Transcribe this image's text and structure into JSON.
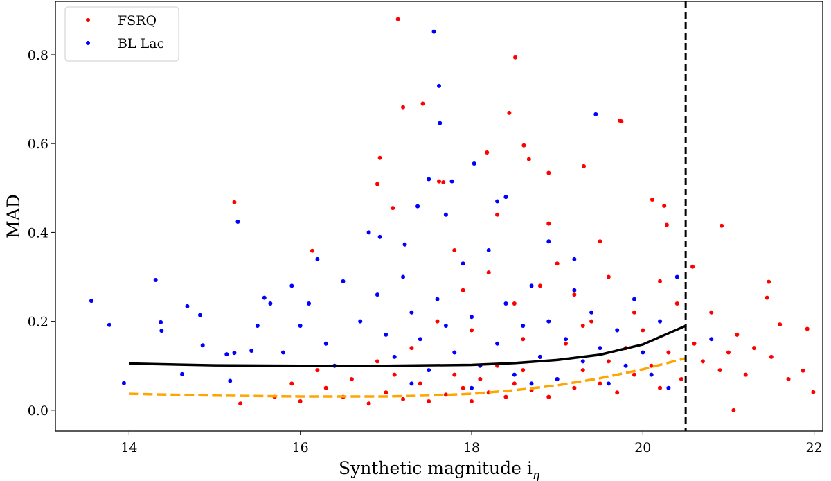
{
  "chart_data": {
    "type": "scatter",
    "xlabel": "Synthetic magnitude i",
    "xlabel_subscript": "η",
    "ylabel": "MAD",
    "xlim": [
      13.14,
      22.1
    ],
    "ylim": [
      -0.047,
      0.92
    ],
    "xticks": [
      14,
      16,
      18,
      20,
      22
    ],
    "xtick_labels": [
      "14",
      "16",
      "18",
      "20",
      "22"
    ],
    "yticks": [
      0.0,
      0.2,
      0.4,
      0.6,
      0.8
    ],
    "ytick_labels": [
      "0.0",
      "0.2",
      "0.4",
      "0.6",
      "0.8"
    ],
    "grid": false,
    "legend_position": "top-left",
    "series": [
      {
        "name": "FSRQ",
        "color": "#ff0000",
        "points": [
          [
            17.14,
            0.88
          ],
          [
            18.51,
            0.794
          ],
          [
            17.2,
            0.682
          ],
          [
            17.43,
            0.69
          ],
          [
            18.44,
            0.669
          ],
          [
            19.73,
            0.652
          ],
          [
            19.75,
            0.65
          ],
          [
            16.93,
            0.568
          ],
          [
            16.9,
            0.509
          ],
          [
            18.61,
            0.596
          ],
          [
            18.18,
            0.58
          ],
          [
            18.67,
            0.565
          ],
          [
            19.31,
            0.549
          ],
          [
            18.9,
            0.534
          ],
          [
            20.11,
            0.474
          ],
          [
            20.25,
            0.46
          ],
          [
            20.28,
            0.417
          ],
          [
            20.92,
            0.415
          ],
          [
            17.08,
            0.455
          ],
          [
            17.62,
            0.515
          ],
          [
            17.67,
            0.513
          ],
          [
            15.23,
            0.468
          ],
          [
            16.14,
            0.359
          ],
          [
            21.47,
            0.289
          ],
          [
            20.58,
            0.323
          ],
          [
            21.92,
            0.183
          ],
          [
            21.99,
            0.041
          ],
          [
            21.87,
            0.089
          ],
          [
            21.06,
            0.0
          ],
          [
            21.45,
            0.253
          ],
          [
            21.6,
            0.193
          ],
          [
            16.0,
            0.02
          ],
          [
            16.3,
            0.05
          ],
          [
            16.5,
            0.03
          ],
          [
            16.8,
            0.015
          ],
          [
            17.0,
            0.04
          ],
          [
            17.2,
            0.025
          ],
          [
            17.4,
            0.06
          ],
          [
            17.5,
            0.02
          ],
          [
            17.7,
            0.035
          ],
          [
            17.8,
            0.08
          ],
          [
            17.9,
            0.05
          ],
          [
            18.0,
            0.02
          ],
          [
            18.1,
            0.07
          ],
          [
            18.2,
            0.04
          ],
          [
            18.3,
            0.1
          ],
          [
            18.4,
            0.03
          ],
          [
            18.5,
            0.06
          ],
          [
            18.6,
            0.09
          ],
          [
            18.7,
            0.045
          ],
          [
            18.8,
            0.12
          ],
          [
            18.9,
            0.03
          ],
          [
            19.0,
            0.07
          ],
          [
            19.1,
            0.15
          ],
          [
            19.2,
            0.05
          ],
          [
            19.3,
            0.09
          ],
          [
            19.4,
            0.2
          ],
          [
            19.5,
            0.06
          ],
          [
            19.6,
            0.11
          ],
          [
            19.7,
            0.04
          ],
          [
            19.8,
            0.14
          ],
          [
            19.9,
            0.08
          ],
          [
            20.0,
            0.18
          ],
          [
            20.1,
            0.1
          ],
          [
            20.2,
            0.05
          ],
          [
            20.3,
            0.13
          ],
          [
            20.4,
            0.24
          ],
          [
            20.45,
            0.07
          ],
          [
            20.6,
            0.15
          ],
          [
            20.7,
            0.11
          ],
          [
            20.8,
            0.22
          ],
          [
            20.9,
            0.09
          ],
          [
            21.0,
            0.13
          ],
          [
            21.1,
            0.17
          ],
          [
            21.2,
            0.08
          ],
          [
            21.3,
            0.14
          ],
          [
            21.5,
            0.12
          ],
          [
            21.7,
            0.07
          ],
          [
            15.7,
            0.03
          ],
          [
            15.3,
            0.015
          ],
          [
            15.9,
            0.06
          ],
          [
            16.9,
            0.11
          ],
          [
            17.3,
            0.14
          ],
          [
            17.6,
            0.2
          ],
          [
            17.9,
            0.27
          ],
          [
            18.2,
            0.31
          ],
          [
            18.5,
            0.24
          ],
          [
            18.8,
            0.28
          ],
          [
            19.0,
            0.33
          ],
          [
            19.2,
            0.26
          ],
          [
            19.6,
            0.3
          ],
          [
            19.9,
            0.22
          ],
          [
            20.2,
            0.29
          ],
          [
            18.0,
            0.18
          ],
          [
            18.6,
            0.16
          ],
          [
            19.3,
            0.19
          ],
          [
            17.1,
            0.08
          ],
          [
            16.6,
            0.07
          ],
          [
            19.5,
            0.38
          ],
          [
            18.9,
            0.42
          ],
          [
            18.3,
            0.44
          ],
          [
            17.8,
            0.36
          ],
          [
            16.2,
            0.09
          ]
        ]
      },
      {
        "name": "BL Lac",
        "color": "#0000ff",
        "points": [
          [
            13.56,
            0.246
          ],
          [
            13.77,
            0.192
          ],
          [
            13.94,
            0.061
          ],
          [
            14.31,
            0.293
          ],
          [
            14.37,
            0.198
          ],
          [
            14.38,
            0.179
          ],
          [
            14.68,
            0.234
          ],
          [
            14.83,
            0.214
          ],
          [
            14.86,
            0.146
          ],
          [
            14.62,
            0.081
          ],
          [
            15.14,
            0.126
          ],
          [
            15.23,
            0.129
          ],
          [
            15.27,
            0.424
          ],
          [
            15.18,
            0.066
          ],
          [
            15.43,
            0.134
          ],
          [
            15.58,
            0.253
          ],
          [
            15.65,
            0.24
          ],
          [
            17.56,
            0.852
          ],
          [
            17.62,
            0.73
          ],
          [
            17.63,
            0.646
          ],
          [
            19.45,
            0.666
          ],
          [
            18.03,
            0.555
          ],
          [
            16.93,
            0.39
          ],
          [
            17.37,
            0.459
          ],
          [
            17.22,
            0.373
          ],
          [
            17.77,
            0.515
          ],
          [
            16.0,
            0.19
          ],
          [
            16.1,
            0.24
          ],
          [
            16.3,
            0.15
          ],
          [
            16.5,
            0.29
          ],
          [
            16.7,
            0.2
          ],
          [
            16.9,
            0.26
          ],
          [
            17.0,
            0.17
          ],
          [
            17.1,
            0.12
          ],
          [
            17.2,
            0.3
          ],
          [
            17.3,
            0.22
          ],
          [
            17.4,
            0.16
          ],
          [
            17.5,
            0.09
          ],
          [
            17.6,
            0.25
          ],
          [
            17.7,
            0.19
          ],
          [
            17.8,
            0.13
          ],
          [
            17.9,
            0.33
          ],
          [
            18.0,
            0.21
          ],
          [
            18.1,
            0.1
          ],
          [
            18.2,
            0.36
          ],
          [
            18.3,
            0.15
          ],
          [
            18.4,
            0.24
          ],
          [
            18.5,
            0.08
          ],
          [
            18.6,
            0.19
          ],
          [
            18.7,
            0.28
          ],
          [
            18.8,
            0.12
          ],
          [
            18.9,
            0.2
          ],
          [
            19.0,
            0.07
          ],
          [
            19.1,
            0.16
          ],
          [
            19.2,
            0.27
          ],
          [
            19.3,
            0.11
          ],
          [
            19.4,
            0.22
          ],
          [
            19.5,
            0.14
          ],
          [
            19.6,
            0.06
          ],
          [
            19.7,
            0.18
          ],
          [
            19.8,
            0.1
          ],
          [
            19.9,
            0.25
          ],
          [
            20.0,
            0.13
          ],
          [
            20.1,
            0.08
          ],
          [
            20.2,
            0.2
          ],
          [
            20.3,
            0.05
          ],
          [
            20.4,
            0.3
          ],
          [
            20.8,
            0.16
          ],
          [
            15.8,
            0.13
          ],
          [
            15.5,
            0.19
          ],
          [
            16.8,
            0.4
          ],
          [
            17.7,
            0.44
          ],
          [
            18.3,
            0.47
          ],
          [
            18.9,
            0.38
          ],
          [
            17.5,
            0.52
          ],
          [
            18.4,
            0.48
          ],
          [
            19.2,
            0.34
          ],
          [
            17.3,
            0.06
          ],
          [
            18.0,
            0.05
          ],
          [
            18.7,
            0.06
          ],
          [
            16.4,
            0.1
          ],
          [
            15.9,
            0.28
          ],
          [
            16.2,
            0.34
          ]
        ]
      }
    ],
    "lines": [
      {
        "style": "solid",
        "color": "#000000",
        "x": [
          14,
          15,
          16,
          17,
          18,
          18.5,
          19,
          19.5,
          20,
          20.5
        ],
        "y": [
          0.105,
          0.101,
          0.1,
          0.1,
          0.102,
          0.106,
          0.113,
          0.125,
          0.148,
          0.19
        ]
      },
      {
        "style": "dashed",
        "color": "#ffa500",
        "x": [
          14,
          15,
          16,
          17,
          17.5,
          18,
          18.5,
          19,
          19.5,
          20,
          20.5
        ],
        "y": [
          0.037,
          0.033,
          0.031,
          0.031,
          0.033,
          0.037,
          0.045,
          0.056,
          0.072,
          0.092,
          0.117
        ]
      }
    ],
    "vertical_line": {
      "x": 20.5,
      "style": "dashed",
      "color": "#000000"
    }
  }
}
